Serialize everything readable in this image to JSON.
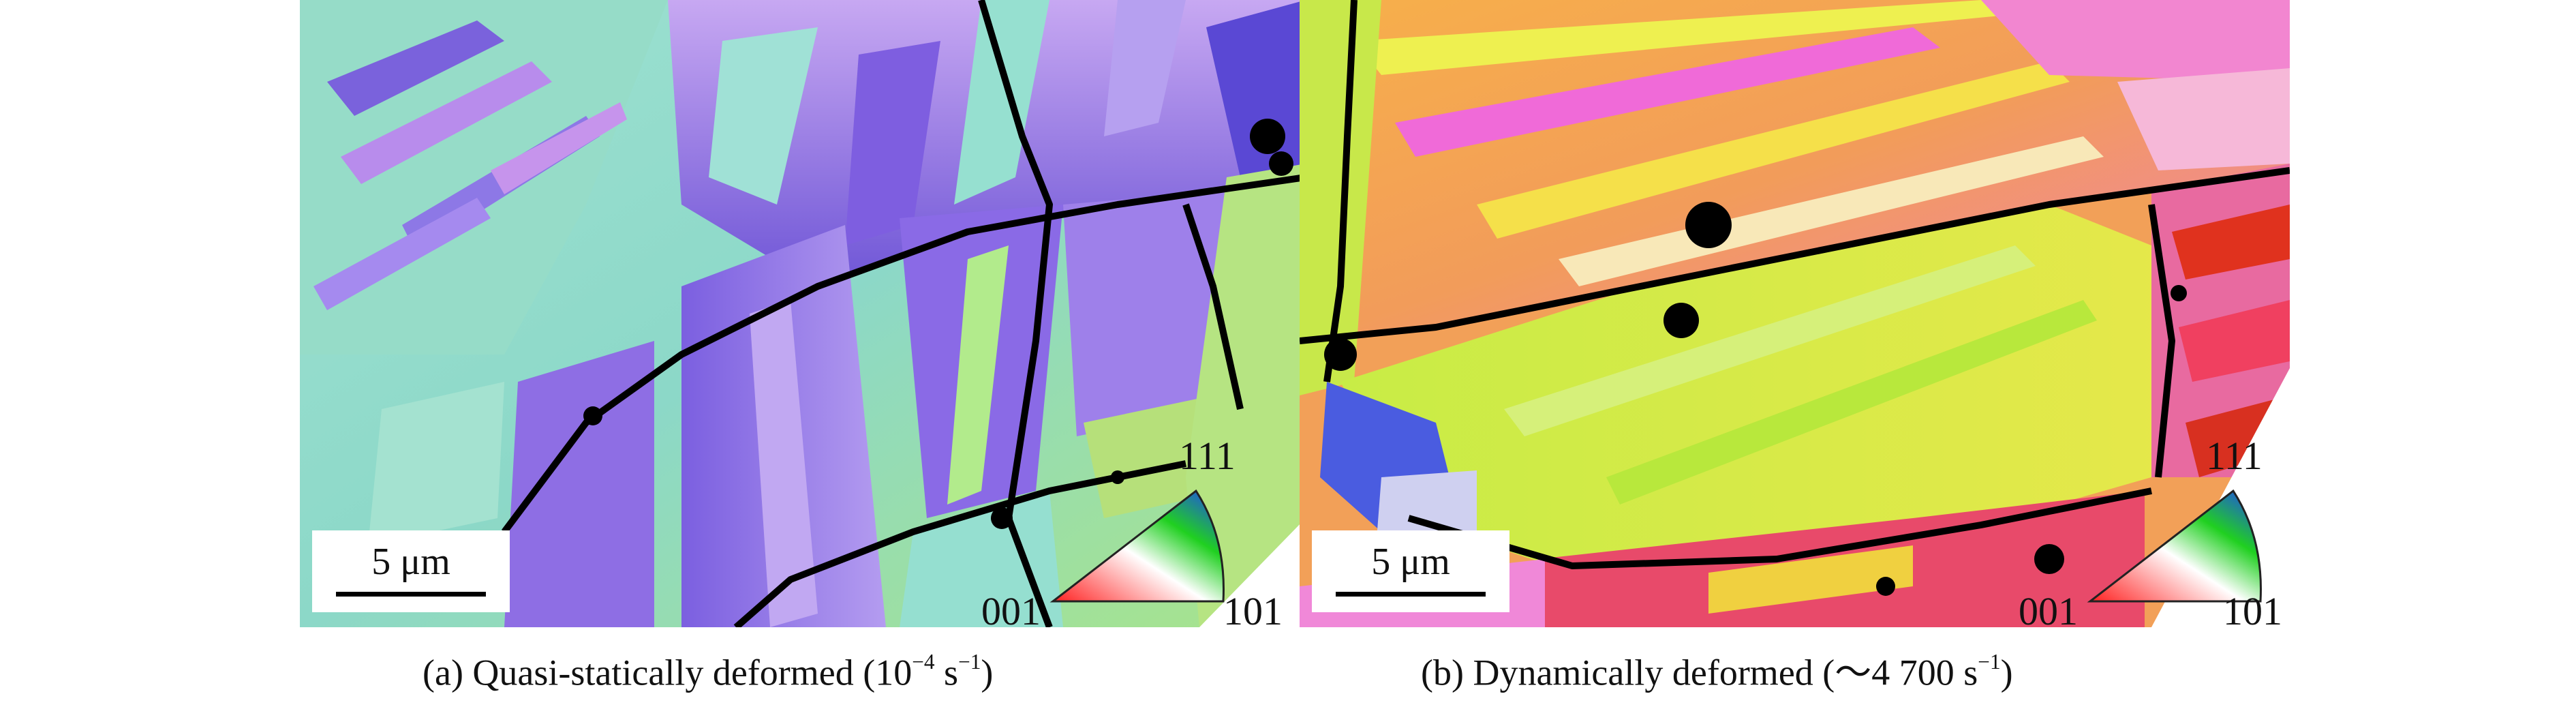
{
  "panels": [
    {
      "id": "a",
      "caption_text": "(a) Quasi-statically deformed (10",
      "caption_sup": "−4",
      "caption_unit": " s",
      "caption_sup2": "−1",
      "caption_close": ")",
      "scale_bar": "5 μm",
      "ipf_labels": {
        "top": "111",
        "left": "001",
        "right": "101"
      }
    },
    {
      "id": "b",
      "caption_text": "(b) Dynamically deformed (～4 700 s",
      "caption_sup": "−1",
      "caption_close": ")",
      "scale_bar": "5 μm",
      "ipf_labels": {
        "top": "111",
        "left": "001",
        "right": "101"
      }
    }
  ],
  "colors": {
    "background": "#ffffff",
    "panel_a_dominant": [
      "#8fe0c6",
      "#9a7ee8",
      "#b4e37a",
      "#6a4fd8"
    ],
    "panel_b_dominant": [
      "#f29a4a",
      "#e6e63c",
      "#f06ad8",
      "#e0321e",
      "#b9ea3c"
    ],
    "ipf_001": "#ff2020",
    "ipf_101": "#20d020",
    "ipf_111": "#2040ff"
  }
}
